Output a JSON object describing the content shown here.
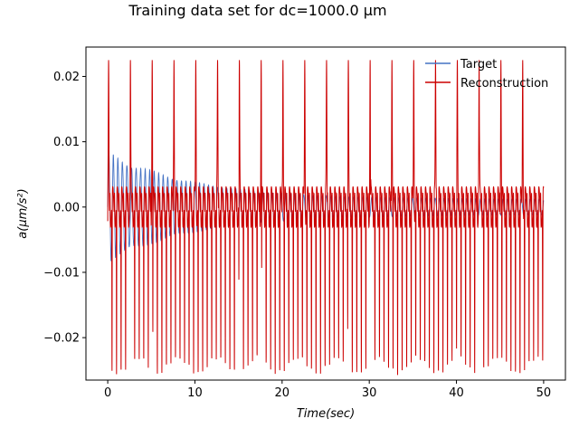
{
  "chart_data": {
    "type": "line",
    "title": "Training data set for dc=1000.0 μm",
    "xlabel": "Time(sec)",
    "ylabel": "a(μm/s²)",
    "xlim": [
      -2.5,
      52.5
    ],
    "ylim": [
      -0.0265,
      0.0245
    ],
    "x_ticks": [
      0,
      10,
      20,
      30,
      40,
      50
    ],
    "x_tick_labels": [
      "0",
      "10",
      "20",
      "30",
      "40",
      "50"
    ],
    "y_ticks": [
      -0.02,
      -0.01,
      0.0,
      0.01,
      0.02
    ],
    "y_tick_labels": [
      "−0.02",
      "−0.01",
      "0.00",
      "0.01",
      "0.02"
    ],
    "grid": false,
    "legend_position": "top-right",
    "series": [
      {
        "name": "Target",
        "color": "#4472c4",
        "description_values": {
          "x_range": [
            0,
            50
          ],
          "oscillation_period_sec": 0.52,
          "envelope_start": 0.008,
          "envelope_end": 0.0012
        }
      },
      {
        "name": "Reconstruction",
        "color": "#cc0000",
        "description_values": {
          "x_range": [
            0,
            50
          ],
          "peak_times": [
            0.1,
            2.6,
            5.1,
            7.6,
            10.1,
            12.6,
            15.1,
            17.6,
            20.1,
            22.6,
            25.1,
            27.6,
            30.1,
            32.6,
            35.1,
            37.6,
            40.1,
            42.6,
            45.1,
            47.6
          ],
          "peak_value": 0.0225,
          "trough_values": [
            -0.022,
            -0.024
          ],
          "oscillation_period_sec": 0.52
        }
      }
    ]
  },
  "colors": {
    "target": "#4472c4",
    "reconstruction": "#cc0000",
    "axes": "#000000"
  }
}
